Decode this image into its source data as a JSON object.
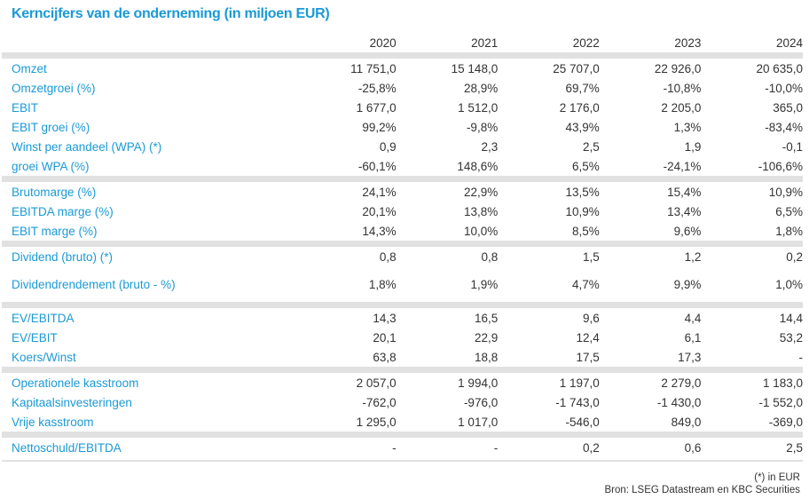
{
  "title": "Kerncijfers van de onderneming (in miljoen EUR)",
  "years": [
    "2020",
    "2021",
    "2022",
    "2023",
    "2024"
  ],
  "sections": [
    [
      {
        "label": "Omzet",
        "values": [
          "11 751,0",
          "15 148,0",
          "25 707,0",
          "22 926,0",
          "20 635,0"
        ]
      },
      {
        "label": "Omzetgroei (%)",
        "values": [
          "-25,8%",
          "28,9%",
          "69,7%",
          "-10,8%",
          "-10,0%"
        ]
      },
      {
        "label": "EBIT",
        "values": [
          "1 677,0",
          "1 512,0",
          "2 176,0",
          "2 205,0",
          "365,0"
        ]
      },
      {
        "label": "EBIT groei (%)",
        "values": [
          "99,2%",
          "-9,8%",
          "43,9%",
          "1,3%",
          "-83,4%"
        ]
      },
      {
        "label": "Winst per aandeel (WPA) (*)",
        "values": [
          "0,9",
          "2,3",
          "2,5",
          "1,9",
          "-0,1"
        ]
      },
      {
        "label": "groei WPA (%)",
        "values": [
          "-60,1%",
          "148,6%",
          "6,5%",
          "-24,1%",
          "-106,6%"
        ]
      }
    ],
    [
      {
        "label": "Brutomarge (%)",
        "values": [
          "24,1%",
          "22,9%",
          "13,5%",
          "15,4%",
          "10,9%"
        ]
      },
      {
        "label": "EBITDA marge (%)",
        "values": [
          "20,1%",
          "13,8%",
          "10,9%",
          "13,4%",
          "6,5%"
        ]
      },
      {
        "label": "EBIT marge (%)",
        "values": [
          "14,3%",
          "10,0%",
          "8,5%",
          "9,6%",
          "1,8%"
        ]
      }
    ],
    [
      {
        "label": "Dividend (bruto) (*)",
        "values": [
          "0,8",
          "0,8",
          "1,5",
          "1,2",
          "0,2"
        ]
      },
      {
        "label": "Dividendrendement (bruto - %)",
        "values": [
          "1,8%",
          "1,9%",
          "4,7%",
          "9,9%",
          "1,0%"
        ],
        "tall": true
      }
    ],
    [
      {
        "label": "EV/EBITDA",
        "values": [
          "14,3",
          "16,5",
          "9,6",
          "4,4",
          "14,4"
        ]
      },
      {
        "label": "EV/EBIT",
        "values": [
          "20,1",
          "22,9",
          "12,4",
          "6,1",
          "53,2"
        ]
      },
      {
        "label": "Koers/Winst",
        "values": [
          "63,8",
          "18,8",
          "17,5",
          "17,3",
          "-"
        ]
      }
    ],
    [
      {
        "label": "Operationele kasstroom",
        "values": [
          "2 057,0",
          "1 994,0",
          "1 197,0",
          "2 279,0",
          "1 183,0"
        ]
      },
      {
        "label": "Kapitaalsinvesteringen",
        "values": [
          "-762,0",
          "-976,0",
          "-1 743,0",
          "-1 430,0",
          "-1 552,0"
        ]
      },
      {
        "label": "Vrije kasstroom",
        "values": [
          "1 295,0",
          "1 017,0",
          "-546,0",
          "849,0",
          "-369,0"
        ]
      }
    ],
    [
      {
        "label": "Nettoschuld/EBITDA",
        "values": [
          "-",
          "-",
          "0,2",
          "0,6",
          "2,5"
        ]
      }
    ]
  ],
  "footnote": "(*) in EUR",
  "source": "Bron: LSEG Datastream en KBC Securities",
  "colors": {
    "accent": "#1a9ad6",
    "separator": "#e1e1e1",
    "text": "#333333"
  }
}
